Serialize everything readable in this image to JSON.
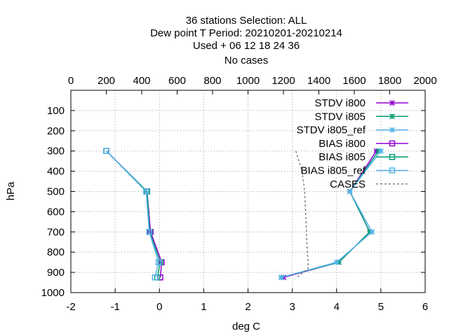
{
  "chart_data": {
    "type": "line",
    "title_lines": [
      "36 stations Selection: ALL",
      "Dew point T  Period: 20210201-20210214",
      "Used   + 06 12 18 24 36",
      "No cases"
    ],
    "xlabel": "deg C",
    "ylabel": "hPa",
    "xlim": [
      -2,
      6
    ],
    "x_ticks": [
      "-2",
      "-1",
      "0",
      "1",
      "2",
      "3",
      "4",
      "5",
      "6"
    ],
    "x2lim": [
      0,
      2000
    ],
    "x2_ticks": [
      "0",
      "200",
      "400",
      "600",
      "800",
      "1000",
      "1200",
      "1400",
      "1600",
      "1800",
      "2000"
    ],
    "ylim": [
      1000,
      0
    ],
    "y_ticks": [
      "100",
      "200",
      "300",
      "400",
      "500",
      "600",
      "700",
      "800",
      "900",
      "1000"
    ],
    "y_tick_values": [
      100,
      200,
      300,
      400,
      500,
      600,
      700,
      800,
      900,
      1000
    ],
    "grid": true,
    "legend_position": "top-right",
    "series": [
      {
        "name": "STDV i800",
        "color": "#9400d3",
        "marker": "x",
        "x": [
          4.9,
          4.3,
          4.75,
          4.05,
          2.8
        ],
        "y": [
          300,
          500,
          700,
          850,
          925
        ]
      },
      {
        "name": "STDV i805",
        "color": "#009e73",
        "marker": "x",
        "x": [
          4.95,
          4.3,
          4.75,
          4.05,
          2.75
        ],
        "y": [
          300,
          500,
          700,
          850,
          925
        ]
      },
      {
        "name": "STDV i805_ref",
        "color": "#56b4e9",
        "marker": "x",
        "x": [
          5.0,
          4.3,
          4.8,
          4.0,
          2.75
        ],
        "y": [
          300,
          500,
          700,
          850,
          925
        ]
      },
      {
        "name": "BIAS i800",
        "color": "#9400d3",
        "marker": "square",
        "x": [
          -1.2,
          -0.28,
          -0.2,
          0.05,
          0.02
        ],
        "y": [
          300,
          500,
          700,
          850,
          925
        ]
      },
      {
        "name": "BIAS i805",
        "color": "#009e73",
        "marker": "square",
        "x": [
          -1.2,
          -0.28,
          -0.22,
          0.02,
          -0.05
        ],
        "y": [
          300,
          500,
          700,
          850,
          925
        ]
      },
      {
        "name": "BIAS i805_ref",
        "color": "#56b4e9",
        "marker": "square",
        "x": [
          -1.2,
          -0.3,
          -0.23,
          -0.02,
          -0.1
        ],
        "y": [
          300,
          500,
          700,
          850,
          925
        ]
      },
      {
        "name": "CASES",
        "color": "#808080",
        "marker": "none",
        "axis": "x2",
        "x": [
          1270,
          1305,
          1320,
          1325,
          1330,
          1335,
          1340,
          1340,
          1275
        ],
        "y": [
          300,
          400,
          500,
          600,
          700,
          800,
          850,
          880,
          925
        ]
      }
    ]
  }
}
